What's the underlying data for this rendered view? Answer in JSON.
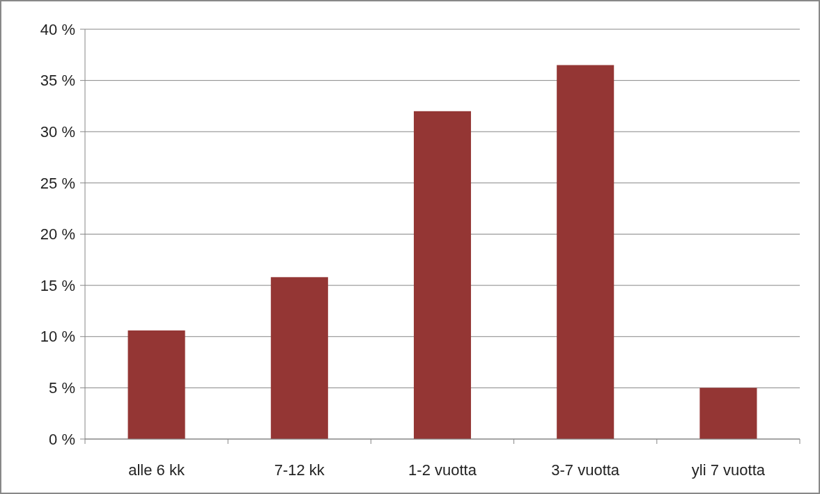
{
  "chart_data": {
    "type": "bar",
    "categories": [
      "alle 6 kk",
      "7-12 kk",
      "1-2 vuotta",
      "3-7 vuotta",
      "yli 7 vuotta"
    ],
    "values": [
      10.6,
      15.8,
      32.0,
      36.5,
      5.0
    ],
    "color": "#943634",
    "ylim": [
      0,
      40
    ],
    "yticks": [
      {
        "value": 0,
        "label": "0 %"
      },
      {
        "value": 5,
        "label": "5 %"
      },
      {
        "value": 10,
        "label": "10 %"
      },
      {
        "value": 15,
        "label": "15 %"
      },
      {
        "value": 20,
        "label": "20 %"
      },
      {
        "value": 25,
        "label": "25 %"
      },
      {
        "value": 30,
        "label": "30 %"
      },
      {
        "value": 35,
        "label": "35 %"
      },
      {
        "value": 40,
        "label": "40 %"
      }
    ],
    "grid": "y"
  }
}
